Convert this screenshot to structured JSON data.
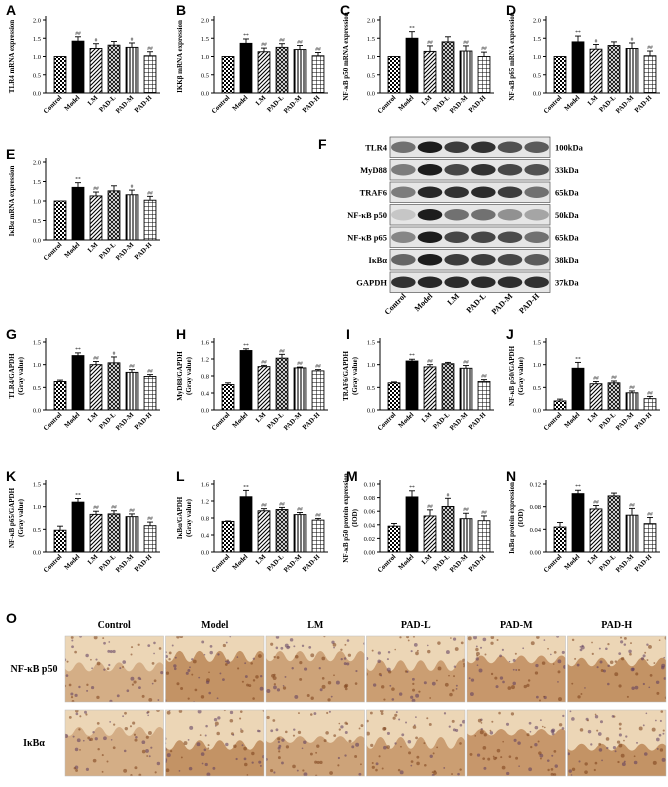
{
  "panel_letters": [
    "A",
    "B",
    "C",
    "D",
    "E",
    "F",
    "G",
    "H",
    "I",
    "J",
    "K",
    "L",
    "M",
    "N",
    "O"
  ],
  "groups": [
    "Control",
    "Model",
    "LM",
    "PAD-L",
    "PAD-M",
    "PAD-H"
  ],
  "colors": {
    "bar_fill": "#ffffff",
    "model_fill": "#000000",
    "stroke": "#000000",
    "tissue_light": "#ecd6b6",
    "tissue_dark": "#a9652e",
    "background": "#ffffff"
  },
  "blot": {
    "proteins": [
      "TLR4",
      "MyD88",
      "TRAF6",
      "NF-κB p50",
      "NF-κB p65",
      "IκBα",
      "GAPDH"
    ],
    "sizes": [
      "100kDa",
      "33kDa",
      "65kDa",
      "50kDa",
      "65kDa",
      "38kDa",
      "37kDa"
    ]
  },
  "micro": {
    "rows": [
      "NF-κB p50",
      "IκBα"
    ],
    "cols": [
      "Control",
      "Model",
      "LM",
      "PAD-L",
      "PAD-M",
      "PAD-H"
    ]
  },
  "chart_data": [
    {
      "panel": "A",
      "type": "bar",
      "ylabel": "TLR4 mRNA expression",
      "categories": [
        "Control",
        "Model",
        "LM",
        "PAD-L",
        "PAD-M",
        "PAD-H"
      ],
      "values": [
        1.0,
        1.42,
        1.22,
        1.31,
        1.25,
        1.02
      ],
      "errors": [
        0,
        0.12,
        0.13,
        0.1,
        0.12,
        0.11
      ],
      "sig": [
        "",
        "##",
        "#",
        "",
        "#",
        "##"
      ],
      "ylim": [
        0,
        2.0
      ],
      "ticks": [
        "0.0",
        "0.5",
        "1.0",
        "1.5",
        "2.0"
      ]
    },
    {
      "panel": "B",
      "type": "bar",
      "ylabel": "IKKβ mRNA expression",
      "categories": [
        "Control",
        "Model",
        "LM",
        "PAD-L",
        "PAD-M",
        "PAD-H"
      ],
      "values": [
        1.0,
        1.36,
        1.13,
        1.25,
        1.19,
        1.02
      ],
      "errors": [
        0,
        0.12,
        0.1,
        0.1,
        0.11,
        0.09
      ],
      "sig": [
        "",
        "**",
        "##",
        "##",
        "##",
        "##"
      ],
      "ylim": [
        0,
        2.0
      ],
      "ticks": [
        "0.0",
        "0.5",
        "1.0",
        "1.5",
        "2.0"
      ]
    },
    {
      "panel": "C",
      "type": "bar",
      "ylabel": "NF-κB p50 mRNA expression",
      "categories": [
        "Control",
        "Model",
        "LM",
        "PAD-L",
        "PAD-M",
        "PAD-H"
      ],
      "values": [
        1.0,
        1.5,
        1.14,
        1.4,
        1.15,
        1.0
      ],
      "errors": [
        0,
        0.18,
        0.15,
        0.14,
        0.14,
        0.12
      ],
      "sig": [
        "",
        "**",
        "##",
        "",
        "##",
        "##"
      ],
      "ylim": [
        0,
        2.0
      ],
      "ticks": [
        "0.0",
        "0.5",
        "1.0",
        "1.5",
        "2.0"
      ]
    },
    {
      "panel": "D",
      "type": "bar",
      "ylabel": "NF-κB p65 mRNA expression",
      "categories": [
        "Control",
        "Model",
        "LM",
        "PAD-L",
        "PAD-M",
        "PAD-H"
      ],
      "values": [
        1.0,
        1.4,
        1.2,
        1.3,
        1.22,
        1.02
      ],
      "errors": [
        0,
        0.16,
        0.13,
        0.1,
        0.15,
        0.13
      ],
      "sig": [
        "",
        "**",
        "#",
        "",
        "#",
        "##"
      ],
      "ylim": [
        0,
        2.0
      ],
      "ticks": [
        "0.0",
        "0.5",
        "1.0",
        "1.5",
        "2.0"
      ]
    },
    {
      "panel": "E",
      "type": "bar",
      "ylabel": "IκBα mRNA expression",
      "categories": [
        "Control",
        "Model",
        "LM",
        "PAD-L",
        "PAD-M",
        "PAD-H"
      ],
      "values": [
        1.0,
        1.35,
        1.13,
        1.26,
        1.16,
        1.02
      ],
      "errors": [
        0,
        0.12,
        0.1,
        0.13,
        0.12,
        0.1
      ],
      "sig": [
        "",
        "**",
        "##",
        "",
        "#",
        "##"
      ],
      "ylim": [
        0,
        2.0
      ],
      "ticks": [
        "0.0",
        "0.5",
        "1.0",
        "1.5",
        "2.0"
      ]
    },
    {
      "panel": "G",
      "type": "bar",
      "ylabel": "TLR4/GAPDH",
      "ylabel2": "(Gray value)",
      "categories": [
        "Control",
        "Model",
        "LM",
        "PAD-L",
        "PAD-M",
        "PAD-H"
      ],
      "values": [
        0.63,
        1.2,
        1.0,
        1.04,
        0.83,
        0.74
      ],
      "errors": [
        0.03,
        0.06,
        0.07,
        0.13,
        0.06,
        0.04
      ],
      "sig": [
        "",
        "**",
        "##",
        "#",
        "##",
        "##"
      ],
      "ylim": [
        0,
        1.5
      ],
      "ticks": [
        "0.0",
        "0.5",
        "1.0",
        "1.5"
      ]
    },
    {
      "panel": "H",
      "type": "bar",
      "ylabel": "MyD88/GAPDH",
      "ylabel2": "(Gray value)",
      "categories": [
        "Control",
        "Model",
        "LM",
        "PAD-L",
        "PAD-M",
        "PAD-H"
      ],
      "values": [
        0.6,
        1.4,
        1.02,
        1.22,
        0.99,
        0.92
      ],
      "errors": [
        0.04,
        0.04,
        0.03,
        0.09,
        0.02,
        0.03
      ],
      "sig": [
        "",
        "**",
        "##",
        "##",
        "##",
        "##"
      ],
      "ylim": [
        0,
        1.6
      ],
      "ticks": [
        "0.0",
        "0.4",
        "0.8",
        "1.2",
        "1.6"
      ]
    },
    {
      "panel": "I",
      "type": "bar",
      "ylabel": "TRAF6/GAPDH",
      "ylabel2": "(Gray value)",
      "categories": [
        "Control",
        "Model",
        "LM",
        "PAD-L",
        "PAD-M",
        "PAD-H"
      ],
      "values": [
        0.6,
        1.08,
        0.95,
        1.02,
        0.92,
        0.63
      ],
      "errors": [
        0.02,
        0.04,
        0.05,
        0.03,
        0.06,
        0.04
      ],
      "sig": [
        "",
        "**",
        "##",
        "",
        "##",
        "##"
      ],
      "ylim": [
        0,
        1.5
      ],
      "ticks": [
        "0.0",
        "0.5",
        "1.0",
        "1.5"
      ]
    },
    {
      "panel": "J",
      "type": "bar",
      "ylabel": "NF-κB p50/GAPDH",
      "ylabel2": "(Gray value)",
      "categories": [
        "Control",
        "Model",
        "LM",
        "PAD-L",
        "PAD-M",
        "PAD-H"
      ],
      "values": [
        0.2,
        0.92,
        0.58,
        0.6,
        0.38,
        0.25
      ],
      "errors": [
        0.04,
        0.13,
        0.05,
        0.04,
        0.04,
        0.05
      ],
      "sig": [
        "",
        "**",
        "##",
        "##",
        "##",
        "##"
      ],
      "ylim": [
        0,
        1.5
      ],
      "ticks": [
        "0.0",
        "0.5",
        "1.0",
        "1.5"
      ]
    },
    {
      "panel": "K",
      "type": "bar",
      "ylabel": "NF-κB p65/GAPDH",
      "ylabel2": "(Gray value)",
      "categories": [
        "Control",
        "Model",
        "LM",
        "PAD-L",
        "PAD-M",
        "PAD-H"
      ],
      "values": [
        0.48,
        1.1,
        0.83,
        0.84,
        0.78,
        0.58
      ],
      "errors": [
        0.09,
        0.08,
        0.07,
        0.07,
        0.06,
        0.08
      ],
      "sig": [
        "",
        "**",
        "##",
        "##",
        "##",
        "##"
      ],
      "ylim": [
        0,
        1.5
      ],
      "ticks": [
        "0.0",
        "0.5",
        "1.0",
        "1.5"
      ]
    },
    {
      "panel": "L",
      "type": "bar",
      "ylabel": "IκBα/GAPDH",
      "ylabel2": "(Gray value)",
      "categories": [
        "Control",
        "Model",
        "LM",
        "PAD-L",
        "PAD-M",
        "PAD-H"
      ],
      "values": [
        0.72,
        1.3,
        0.97,
        1.0,
        0.88,
        0.75
      ],
      "errors": [
        0.01,
        0.15,
        0.05,
        0.05,
        0.05,
        0.04
      ],
      "sig": [
        "",
        "**",
        "##",
        "##",
        "##",
        "##"
      ],
      "ylim": [
        0,
        1.6
      ],
      "ticks": [
        "0.0",
        "0.4",
        "0.8",
        "1.2",
        "1.6"
      ]
    },
    {
      "panel": "M",
      "type": "bar",
      "ylabel": "NF-κB p50 protein expression",
      "ylabel2": "(IOD)",
      "categories": [
        "Control",
        "Model",
        "LM",
        "PAD-L",
        "PAD-M",
        "PAD-H"
      ],
      "values": [
        0.038,
        0.081,
        0.053,
        0.067,
        0.049,
        0.046
      ],
      "errors": [
        0.004,
        0.009,
        0.009,
        0.012,
        0.008,
        0.007
      ],
      "sig": [
        "",
        "**",
        "##",
        "#",
        "##",
        "##"
      ],
      "ylim": [
        0,
        0.1
      ],
      "ticks": [
        "0.00",
        "0.02",
        "0.04",
        "0.06",
        "0.08",
        "0.10"
      ]
    },
    {
      "panel": "N",
      "type": "bar",
      "ylabel": "IκBα protein expression",
      "ylabel2": "(IOD)",
      "categories": [
        "Control",
        "Model",
        "LM",
        "PAD-L",
        "PAD-M",
        "PAD-H"
      ],
      "values": [
        0.044,
        0.103,
        0.076,
        0.099,
        0.065,
        0.05
      ],
      "errors": [
        0.008,
        0.006,
        0.006,
        0.005,
        0.012,
        0.011
      ],
      "sig": [
        "",
        "**",
        "##",
        "",
        "##",
        "##"
      ],
      "ylim": [
        0,
        0.12
      ],
      "ticks": [
        "0.00",
        "0.04",
        "0.08",
        "0.12"
      ]
    }
  ]
}
